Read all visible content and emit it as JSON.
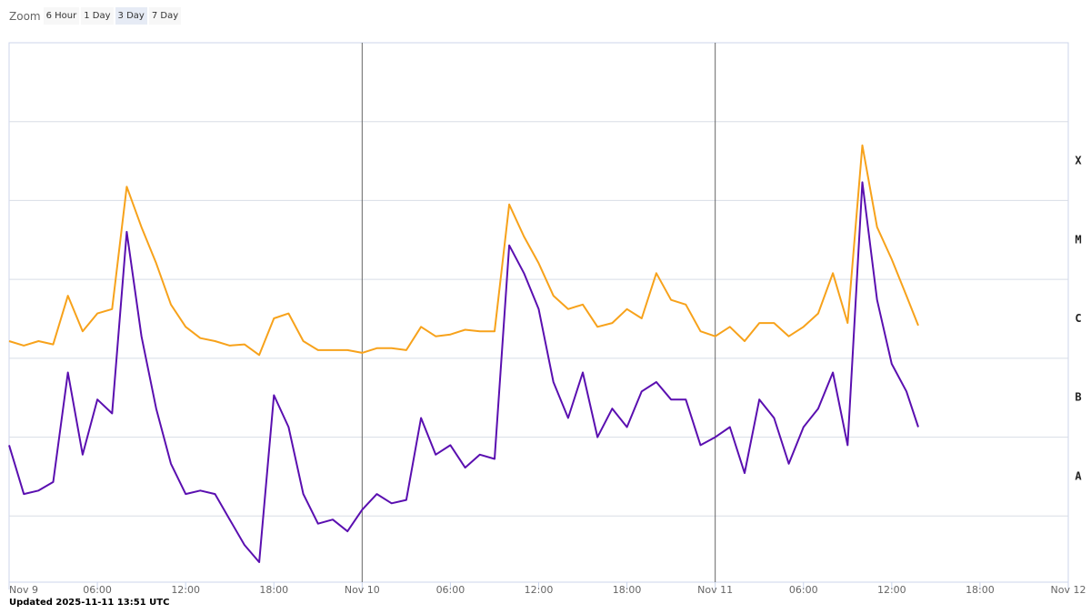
{
  "zoom": {
    "label": "Zoom",
    "options": [
      "6 Hour",
      "1 Day",
      "3 Day",
      "7 Day"
    ],
    "selected": 2
  },
  "footer": "Updated 2025-11-11 13:51 UTC",
  "chart_data": {
    "type": "line",
    "log_y": true,
    "xlim": [
      "2025-11-09 00:00",
      "2025-11-12 00:00"
    ],
    "xticks": [
      {
        "value": "2025-11-09 00:00",
        "label": "Nov 9"
      },
      {
        "value": "2025-11-09 06:00",
        "label": "06:00"
      },
      {
        "value": "2025-11-09 12:00",
        "label": "12:00"
      },
      {
        "value": "2025-11-09 18:00",
        "label": "18:00"
      },
      {
        "value": "2025-11-10 00:00",
        "label": "Nov 10"
      },
      {
        "value": "2025-11-10 06:00",
        "label": "06:00"
      },
      {
        "value": "2025-11-10 12:00",
        "label": "12:00"
      },
      {
        "value": "2025-11-10 18:00",
        "label": "18:00"
      },
      {
        "value": "2025-11-11 00:00",
        "label": "Nov 11"
      },
      {
        "value": "2025-11-11 06:00",
        "label": "06:00"
      },
      {
        "value": "2025-11-11 12:00",
        "label": "12:00"
      },
      {
        "value": "2025-11-11 18:00",
        "label": "18:00"
      },
      {
        "value": "2025-11-12 00:00",
        "label": "Nov 12"
      }
    ],
    "ylim": [
      1.45e-09,
      0.01
    ],
    "ygrid": [
      1e-08,
      1e-07,
      1e-06,
      1e-05,
      0.0001,
      0.001
    ],
    "yticks": [
      {
        "value": 0.000316,
        "label": "X"
      },
      {
        "value": 3.16e-05,
        "label": "M"
      },
      {
        "value": 3.16e-06,
        "label": "C"
      },
      {
        "value": 3.16e-07,
        "label": "B"
      },
      {
        "value": 3.16e-08,
        "label": "A"
      }
    ],
    "x": [
      "2025-11-09 00:00",
      "2025-11-09 01:00",
      "2025-11-09 02:00",
      "2025-11-09 03:00",
      "2025-11-09 04:00",
      "2025-11-09 05:00",
      "2025-11-09 06:00",
      "2025-11-09 07:00",
      "2025-11-09 08:00",
      "2025-11-09 09:00",
      "2025-11-09 10:00",
      "2025-11-09 11:00",
      "2025-11-09 12:00",
      "2025-11-09 13:00",
      "2025-11-09 14:00",
      "2025-11-09 15:00",
      "2025-11-09 16:00",
      "2025-11-09 17:00",
      "2025-11-09 18:00",
      "2025-11-09 19:00",
      "2025-11-09 20:00",
      "2025-11-09 21:00",
      "2025-11-09 22:00",
      "2025-11-09 23:00",
      "2025-11-10 00:00",
      "2025-11-10 01:00",
      "2025-11-10 02:00",
      "2025-11-10 03:00",
      "2025-11-10 04:00",
      "2025-11-10 05:00",
      "2025-11-10 06:00",
      "2025-11-10 07:00",
      "2025-11-10 08:00",
      "2025-11-10 09:00",
      "2025-11-10 10:00",
      "2025-11-10 11:00",
      "2025-11-10 12:00",
      "2025-11-10 13:00",
      "2025-11-10 14:00",
      "2025-11-10 15:00",
      "2025-11-10 16:00",
      "2025-11-10 17:00",
      "2025-11-10 18:00",
      "2025-11-10 19:00",
      "2025-11-10 20:00",
      "2025-11-10 21:00",
      "2025-11-10 22:00",
      "2025-11-10 23:00",
      "2025-11-11 00:00",
      "2025-11-11 01:00",
      "2025-11-11 02:00",
      "2025-11-11 03:00",
      "2025-11-11 04:00",
      "2025-11-11 05:00",
      "2025-11-11 06:00",
      "2025-11-11 07:00",
      "2025-11-11 08:00",
      "2025-11-11 09:00",
      "2025-11-11 10:00",
      "2025-11-11 11:00",
      "2025-11-11 12:00",
      "2025-11-11 13:00",
      "2025-11-11 13:48"
    ],
    "series": [
      {
        "color": "#f7a21b",
        "values": [
          1.65e-06,
          1.45e-06,
          1.65e-06,
          1.5e-06,
          6.2e-06,
          2.2e-06,
          3.7e-06,
          4.2e-06,
          0.00015,
          4.6e-05,
          1.6e-05,
          4.8e-06,
          2.5e-06,
          1.8e-06,
          1.65e-06,
          1.45e-06,
          1.5e-06,
          1.1e-06,
          3.2e-06,
          3.7e-06,
          1.65e-06,
          1.27e-06,
          1.27e-06,
          1.27e-06,
          1.17e-06,
          1.34e-06,
          1.34e-06,
          1.27e-06,
          2.5e-06,
          1.9e-06,
          2e-06,
          2.3e-06,
          2.2e-06,
          2.2e-06,
          8.9e-05,
          3.5e-05,
          1.6e-05,
          6.2e-06,
          4.2e-06,
          4.8e-06,
          2.5e-06,
          2.8e-06,
          4.2e-06,
          3.2e-06,
          1.2e-05,
          5.5e-06,
          4.8e-06,
          2.2e-06,
          1.9e-06,
          2.5e-06,
          1.65e-06,
          2.8e-06,
          2.8e-06,
          1.9e-06,
          2.5e-06,
          3.7e-06,
          1.2e-05,
          2.8e-06,
          0.0005,
          4.6e-05,
          1.8e-05,
          6.2e-06,
          2.6e-06
        ]
      },
      {
        "color": "#5a0fb0",
        "values": [
          7.9e-08,
          1.9e-08,
          2.1e-08,
          2.7e-08,
          6.6e-07,
          6e-08,
          3e-07,
          2e-07,
          4e-05,
          1.9e-06,
          2.3e-07,
          4.6e-08,
          1.9e-08,
          2.1e-08,
          1.9e-08,
          9e-09,
          4.3e-09,
          2.6e-09,
          3.4e-07,
          1.34e-07,
          1.9e-08,
          8e-09,
          9e-09,
          6.4e-09,
          1.2e-08,
          1.9e-08,
          1.45e-08,
          1.6e-08,
          1.75e-07,
          6e-08,
          7.9e-08,
          4.1e-08,
          6e-08,
          5.3e-08,
          2.7e-05,
          1.2e-05,
          4.2e-06,
          5e-07,
          1.75e-07,
          6.6e-07,
          1e-07,
          2.3e-07,
          1.34e-07,
          3.8e-07,
          5e-07,
          3e-07,
          3e-07,
          7.9e-08,
          1e-07,
          1.34e-07,
          3.5e-08,
          3e-07,
          1.75e-07,
          4.6e-08,
          1.34e-07,
          2.3e-07,
          6.6e-07,
          7.9e-08,
          0.00017,
          5.5e-06,
          8.5e-07,
          3.8e-07,
          1.34e-07
        ]
      }
    ]
  }
}
